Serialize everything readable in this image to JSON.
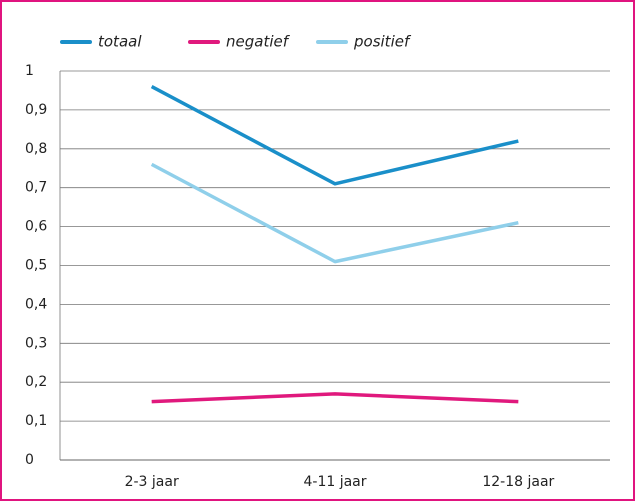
{
  "chart_data": {
    "type": "line",
    "categories": [
      "2-3 jaar",
      "4-11 jaar",
      "12-18 jaar"
    ],
    "series": [
      {
        "name": "totaal",
        "color": "#1a8fc9",
        "values": [
          0.96,
          0.71,
          0.82
        ]
      },
      {
        "name": "negatief",
        "color": "#e0197d",
        "values": [
          0.15,
          0.17,
          0.15
        ]
      },
      {
        "name": "positief",
        "color": "#8fcfea",
        "values": [
          0.76,
          0.51,
          0.61
        ]
      }
    ],
    "ylim": [
      0,
      1
    ],
    "yticks": [
      0,
      {
        "value": 0.1,
        "label": "0,1"
      },
      {
        "value": 0.2,
        "label": "0,2"
      },
      {
        "value": 0.3,
        "label": "0,3"
      },
      {
        "value": 0.4,
        "label": "0,4"
      },
      {
        "value": 0.5,
        "label": "0,5"
      },
      {
        "value": 0.6,
        "label": "0,6"
      },
      {
        "value": 0.7,
        "label": "0,7"
      },
      {
        "value": 0.8,
        "label": "0,8"
      },
      {
        "value": 0.9,
        "label": "0,9"
      },
      1
    ],
    "grid": true,
    "legend": "top"
  }
}
